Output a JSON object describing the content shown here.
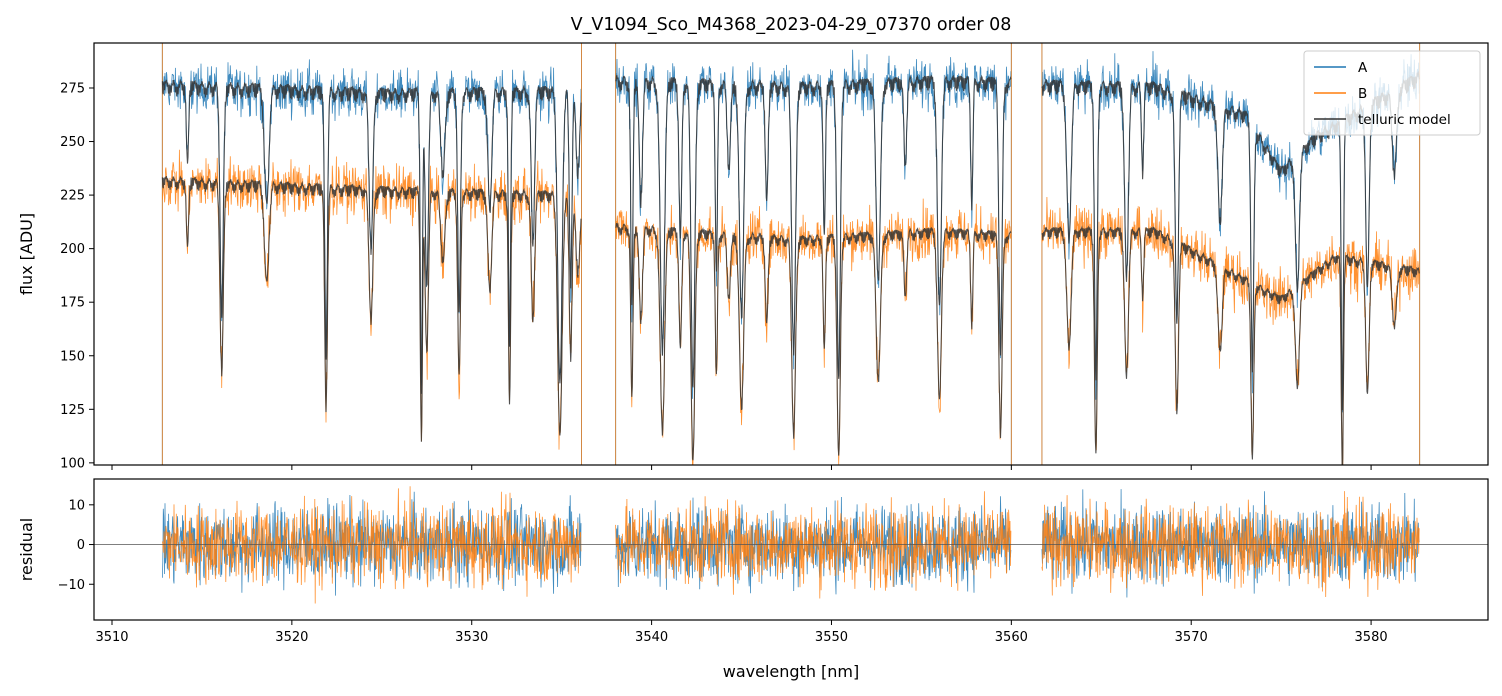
{
  "chart_data": [
    {
      "type": "line",
      "panel": "top",
      "title": "V_V1094_Sco_M4368_2023-04-29_07370  order 08",
      "xlabel": "",
      "ylabel": "flux [ADU]",
      "xlim": [
        3509,
        3586.5
      ],
      "ylim": [
        99,
        296
      ],
      "yticks": [
        100,
        125,
        150,
        175,
        200,
        225,
        250,
        275
      ],
      "xticks": [
        3510,
        3520,
        3530,
        3540,
        3550,
        3560,
        3570,
        3580
      ],
      "grid": false,
      "legend": "top-right",
      "segments": [
        [
          3512.8,
          3536.1
        ],
        [
          3538.0,
          3560.0
        ],
        [
          3561.7,
          3582.7
        ]
      ],
      "series": [
        {
          "name": "A",
          "color": "#1f77b4",
          "level": [
            [
              3512.8,
              279
            ],
            [
              3525,
              275
            ],
            [
              3535,
              276
            ],
            [
              3538,
              281
            ],
            [
              3548,
              278
            ],
            [
              3556,
              281
            ],
            [
              3560,
              280
            ],
            [
              3562,
              279
            ],
            [
              3568,
              278
            ],
            [
              3573,
              265
            ],
            [
              3575,
              238
            ],
            [
              3577,
              255
            ],
            [
              3582.7,
              283
            ]
          ],
          "noise": 8.5
        },
        {
          "name": "B",
          "color": "#ff7f0e",
          "level": [
            [
              3512.8,
              234
            ],
            [
              3520,
              231
            ],
            [
              3526,
              229
            ],
            [
              3535,
              227
            ],
            [
              3538,
              212
            ],
            [
              3548,
              206
            ],
            [
              3556,
              210
            ],
            [
              3560,
              208
            ],
            [
              3562,
              210
            ],
            [
              3568,
              210
            ],
            [
              3575,
              178
            ],
            [
              3578,
              198
            ],
            [
              3582.7,
              191
            ]
          ],
          "noise": 10
        },
        {
          "name": "telluric model",
          "color": "#333333"
        }
      ],
      "absorption_lines_nm": [
        3514.2,
        3516.1,
        3518.6,
        3521.9,
        3524.4,
        3527.2,
        3527.5,
        3528.4,
        3529.3,
        3531.0,
        3532.1,
        3533.4,
        3534.9,
        3535.5,
        3535.9,
        3538.9,
        3539.4,
        3540.6,
        3541.6,
        3542.3,
        3543.6,
        3544.3,
        3545.0,
        3546.4,
        3547.9,
        3549.6,
        3550.4,
        3552.6,
        3554.1,
        3556.0,
        3557.8,
        3559.4,
        3563.2,
        3564.7,
        3566.4,
        3567.3,
        3569.2,
        3571.6,
        3573.4,
        3575.9,
        3578.4,
        3579.8,
        3581.3
      ]
    },
    {
      "type": "line",
      "panel": "bottom",
      "title": "",
      "xlabel": "wavelength [nm]",
      "ylabel": "residual",
      "xlim": [
        3509,
        3586.5
      ],
      "ylim": [
        -19,
        16.5
      ],
      "yticks": [
        -10,
        0,
        10
      ],
      "xticks": [
        3510,
        3520,
        3530,
        3540,
        3550,
        3560,
        3570,
        3580
      ],
      "grid": false,
      "zero_line": true,
      "series": [
        {
          "name": "A",
          "color": "#1f77b4",
          "sigma": 5
        },
        {
          "name": "B",
          "color": "#ff7f0e",
          "sigma": 5
        }
      ]
    }
  ]
}
